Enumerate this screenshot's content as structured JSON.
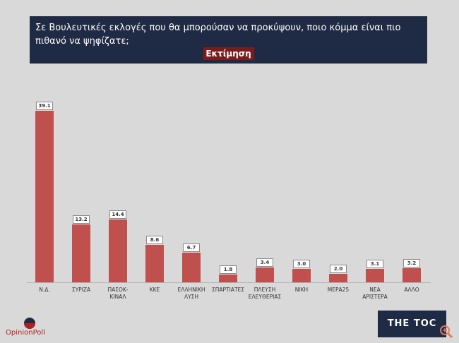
{
  "chart_data": {
    "type": "bar",
    "title": "Σε Βουλευτικές εκλογές που θα μπορούσαν να προκύψουν, ποιο κόμμα είναι πιο πιθανό να ψηφίζατε;",
    "subtitle": "Εκτίμηση",
    "categories": [
      "Ν.Δ.",
      "ΣΥΡΙΖΑ",
      "ΠΑΣΟΚ-ΚΙΝΑΛ",
      "ΚΚΕ",
      "ΕΛΛΗΝΙΚΗ ΛΥΣΗ",
      "ΣΠΑΡΤΙΑΤΕΣ",
      "ΠΛΕΥΣΗ ΕΛΕΥΘΕΡΙΑΣ",
      "ΝΙΚΗ",
      "ΜΕΡΑ25",
      "ΝΕΑ ΑΡΙΣΤΕΡΑ",
      "ΑΛΛΟ"
    ],
    "values": [
      39.1,
      13.2,
      14.4,
      8.6,
      6.7,
      1.8,
      3.4,
      3.0,
      2.0,
      3.1,
      3.2
    ],
    "value_labels": [
      "39.1",
      "13.2",
      "14.4",
      "8.6",
      "6.7",
      "1.8",
      "3.4",
      "3.0",
      "2.0",
      "3.1",
      "3.2"
    ],
    "color": "#c0504d"
  },
  "logos": {
    "left": "OpinionPoll",
    "right": "THE TOC"
  }
}
